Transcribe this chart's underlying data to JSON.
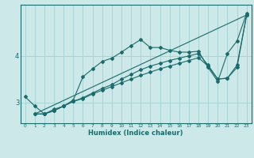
{
  "xlabel": "Humidex (Indice chaleur)",
  "background_color": "#cce8e8",
  "line_color": "#1a6b6b",
  "grid_color": "#a8d4d4",
  "xlim": [
    -0.5,
    23.5
  ],
  "ylim": [
    2.55,
    5.1
  ],
  "yticks": [
    3,
    4
  ],
  "xticks": [
    0,
    1,
    2,
    3,
    4,
    5,
    6,
    7,
    8,
    9,
    10,
    11,
    12,
    13,
    14,
    15,
    16,
    17,
    18,
    19,
    20,
    21,
    22,
    23
  ],
  "line1_x": [
    0,
    1,
    2,
    3,
    4,
    5,
    6,
    7,
    8,
    9,
    10,
    11,
    12,
    13,
    14,
    15,
    16,
    17,
    18,
    19,
    20,
    21,
    22,
    23
  ],
  "line1_y": [
    3.12,
    2.92,
    2.75,
    2.82,
    2.92,
    3.05,
    3.55,
    3.72,
    3.88,
    3.95,
    4.08,
    4.22,
    4.35,
    4.18,
    4.18,
    4.12,
    4.08,
    4.08,
    4.1,
    3.75,
    3.45,
    4.05,
    4.32,
    4.92
  ],
  "line2_x": [
    1,
    2,
    3,
    4,
    5,
    6,
    7,
    8,
    9,
    10,
    11,
    12,
    13,
    14,
    15,
    16,
    17,
    18,
    19,
    20,
    21,
    22,
    23
  ],
  "line2_y": [
    2.75,
    2.75,
    2.82,
    2.92,
    3.02,
    3.1,
    3.2,
    3.3,
    3.38,
    3.5,
    3.6,
    3.7,
    3.78,
    3.84,
    3.9,
    3.95,
    4.0,
    4.05,
    3.8,
    3.5,
    3.52,
    3.8,
    4.88
  ],
  "line3_x": [
    1,
    2,
    3,
    4,
    5,
    6,
    7,
    8,
    9,
    10,
    11,
    12,
    13,
    14,
    15,
    16,
    17,
    18,
    19,
    20,
    21,
    22,
    23
  ],
  "line3_y": [
    2.75,
    2.75,
    2.85,
    2.92,
    3.02,
    3.08,
    3.18,
    3.26,
    3.34,
    3.42,
    3.5,
    3.58,
    3.65,
    3.72,
    3.78,
    3.84,
    3.9,
    3.96,
    3.78,
    3.5,
    3.52,
    3.75,
    4.88
  ],
  "line4_x": [
    1,
    23
  ],
  "line4_y": [
    2.75,
    4.88
  ]
}
